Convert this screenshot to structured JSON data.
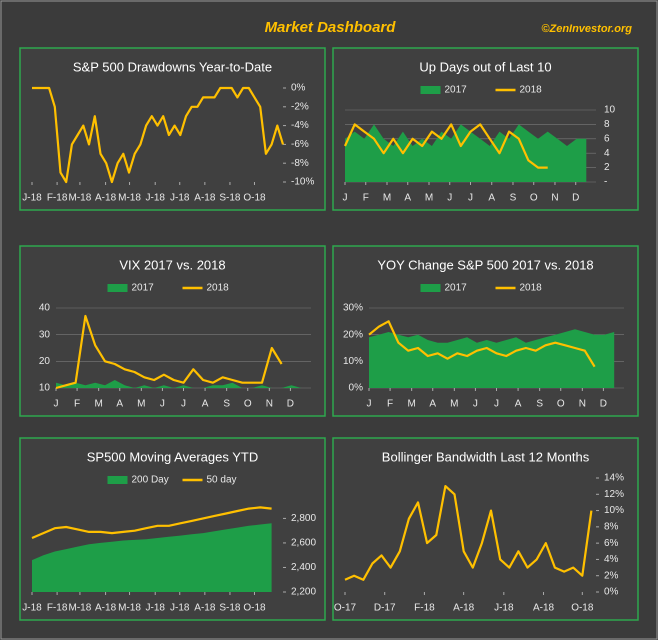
{
  "header": {
    "title": "Market Dashboard",
    "credit": "©ZenInvestor.org"
  },
  "chart_data": [
    {
      "type": "line",
      "title": "S&P 500 Drawdowns Year-to-Date",
      "y_axis_side": "right",
      "grid": false,
      "legend": false,
      "x": [
        0,
        1,
        2,
        3,
        4,
        5,
        6,
        7,
        8,
        9,
        10,
        11,
        12,
        13,
        14,
        15,
        16,
        17,
        18,
        19,
        20,
        21,
        22,
        23,
        24,
        25,
        26,
        27,
        28,
        29,
        30,
        31,
        32,
        33,
        34,
        35,
        36,
        37,
        38,
        39,
        40,
        41,
        42,
        43,
        44
      ],
      "xlim": [
        0,
        44
      ],
      "xticks": [
        {
          "value": 0,
          "label": "J-18"
        },
        {
          "value": 4.4,
          "label": "F-18"
        },
        {
          "value": 8.4,
          "label": "M-18"
        },
        {
          "value": 12.9,
          "label": "A-18"
        },
        {
          "value": 17.1,
          "label": "M-18"
        },
        {
          "value": 21.6,
          "label": "J-18"
        },
        {
          "value": 25.9,
          "label": "J-18"
        },
        {
          "value": 30.3,
          "label": "A-18"
        },
        {
          "value": 34.7,
          "label": "S-18"
        },
        {
          "value": 39,
          "label": "O-18"
        }
      ],
      "ylim": [
        -10,
        0
      ],
      "yticks": [
        {
          "value": 0,
          "label": "0%"
        },
        {
          "value": -2,
          "label": "-2%"
        },
        {
          "value": -4,
          "label": "-4%"
        },
        {
          "value": -6,
          "label": "-6%"
        },
        {
          "value": -8,
          "label": "-8%"
        },
        {
          "value": -10,
          "label": "-10%"
        }
      ],
      "series": [
        {
          "kind": "line",
          "color": "#ffc000",
          "values": [
            0,
            0,
            0,
            0,
            -2,
            -9,
            -10,
            -6,
            -5,
            -4,
            -6,
            -3,
            -7,
            -8,
            -10,
            -8,
            -7,
            -9,
            -7,
            -6,
            -4,
            -3,
            -4,
            -3,
            -5,
            -4,
            -5,
            -3,
            -2,
            -2,
            -1,
            -1,
            -1,
            0,
            0,
            0,
            -1,
            0,
            0,
            -1,
            -2,
            -7,
            -6,
            -4,
            -6
          ]
        }
      ]
    },
    {
      "type": "line",
      "title": "Up Days out of Last  10",
      "y_axis_side": "right",
      "grid": true,
      "legend": true,
      "x": [
        0,
        2,
        4,
        6,
        8,
        10,
        12,
        14,
        16,
        18,
        20,
        22,
        24,
        26,
        28,
        30,
        32,
        34,
        36,
        38,
        40,
        42,
        44,
        46,
        48,
        50
      ],
      "xlim": [
        0,
        52
      ],
      "xticks": [
        {
          "value": 0,
          "label": "J"
        },
        {
          "value": 4.3,
          "label": "F"
        },
        {
          "value": 8.7,
          "label": "M"
        },
        {
          "value": 13,
          "label": "A"
        },
        {
          "value": 17.4,
          "label": "M"
        },
        {
          "value": 21.7,
          "label": "J"
        },
        {
          "value": 26,
          "label": "J"
        },
        {
          "value": 30.4,
          "label": "A"
        },
        {
          "value": 34.8,
          "label": "S"
        },
        {
          "value": 39.1,
          "label": "O"
        },
        {
          "value": 43.5,
          "label": "N"
        },
        {
          "value": 47.8,
          "label": "D"
        }
      ],
      "ylim": [
        0,
        10
      ],
      "yticks": [
        {
          "value": 0,
          "label": "-"
        },
        2,
        4,
        6,
        8,
        10
      ],
      "series": [
        {
          "name": "2017",
          "kind": "area",
          "color": "#1e9e48",
          "values": [
            6,
            7,
            6,
            8,
            6,
            5,
            7,
            5,
            6,
            5,
            7,
            6,
            8,
            7,
            6,
            5,
            7,
            6,
            8,
            7,
            6,
            7,
            6,
            5,
            6,
            6
          ]
        },
        {
          "name": "2018",
          "kind": "line",
          "color": "#ffc000",
          "values": [
            5,
            8,
            7,
            6,
            4,
            6,
            4,
            6,
            5,
            7,
            6,
            8,
            5,
            7,
            8,
            6,
            4,
            7,
            6,
            3,
            2,
            2,
            null,
            null,
            null,
            null
          ]
        }
      ]
    },
    {
      "type": "line",
      "title": "VIX 2017 vs. 2018",
      "y_axis_side": "left",
      "grid": true,
      "legend": true,
      "x": [
        0,
        2,
        4,
        6,
        8,
        10,
        12,
        14,
        16,
        18,
        20,
        22,
        24,
        26,
        28,
        30,
        32,
        34,
        36,
        38,
        40,
        42,
        44,
        46,
        48,
        50
      ],
      "xlim": [
        0,
        52
      ],
      "xticks": [
        {
          "value": 0,
          "label": "J"
        },
        {
          "value": 4.3,
          "label": "F"
        },
        {
          "value": 8.7,
          "label": "M"
        },
        {
          "value": 13,
          "label": "A"
        },
        {
          "value": 17.4,
          "label": "M"
        },
        {
          "value": 21.7,
          "label": "J"
        },
        {
          "value": 26,
          "label": "J"
        },
        {
          "value": 30.4,
          "label": "A"
        },
        {
          "value": 34.8,
          "label": "S"
        },
        {
          "value": 39.1,
          "label": "O"
        },
        {
          "value": 43.5,
          "label": "N"
        },
        {
          "value": 47.8,
          "label": "D"
        }
      ],
      "ylim": [
        10,
        40
      ],
      "yticks": [
        10,
        20,
        30,
        40
      ],
      "series": [
        {
          "name": "2017",
          "kind": "area",
          "color": "#1e9e48",
          "values": [
            12,
            11,
            12,
            11,
            12,
            11,
            13,
            11,
            10,
            11,
            10,
            11,
            10,
            11,
            10,
            10,
            11,
            11,
            12,
            10,
            10,
            11,
            10,
            10,
            11,
            10
          ]
        },
        {
          "name": "2018",
          "kind": "line",
          "color": "#ffc000",
          "values": [
            10,
            11,
            12,
            37,
            26,
            20,
            19,
            17,
            16,
            14,
            13,
            15,
            13,
            12,
            17,
            13,
            12,
            14,
            13,
            12,
            12,
            12,
            25,
            19,
            null,
            null
          ]
        }
      ]
    },
    {
      "type": "line",
      "title": "YOY Change S&P 500 2017 vs. 2018",
      "y_axis_side": "left",
      "grid": true,
      "legend": true,
      "x": [
        0,
        2,
        4,
        6,
        8,
        10,
        12,
        14,
        16,
        18,
        20,
        22,
        24,
        26,
        28,
        30,
        32,
        34,
        36,
        38,
        40,
        42,
        44,
        46,
        48,
        50
      ],
      "xlim": [
        0,
        52
      ],
      "xticks": [
        {
          "value": 0,
          "label": "J"
        },
        {
          "value": 4.3,
          "label": "F"
        },
        {
          "value": 8.7,
          "label": "M"
        },
        {
          "value": 13,
          "label": "A"
        },
        {
          "value": 17.4,
          "label": "M"
        },
        {
          "value": 21.7,
          "label": "J"
        },
        {
          "value": 26,
          "label": "J"
        },
        {
          "value": 30.4,
          "label": "A"
        },
        {
          "value": 34.8,
          "label": "S"
        },
        {
          "value": 39.1,
          "label": "O"
        },
        {
          "value": 43.5,
          "label": "N"
        },
        {
          "value": 47.8,
          "label": "D"
        }
      ],
      "ylim": [
        0,
        30
      ],
      "yticks": [
        {
          "value": 0,
          "label": "0%"
        },
        {
          "value": 10,
          "label": "10%"
        },
        {
          "value": 20,
          "label": "20%"
        },
        {
          "value": 30,
          "label": "30%"
        }
      ],
      "series": [
        {
          "name": "2017",
          "kind": "area",
          "color": "#1e9e48",
          "values": [
            19,
            20,
            21,
            20,
            19,
            20,
            18,
            17,
            17,
            18,
            19,
            17,
            18,
            17,
            18,
            19,
            17,
            18,
            19,
            20,
            21,
            22,
            21,
            20,
            20,
            21
          ]
        },
        {
          "name": "2018",
          "kind": "line",
          "color": "#ffc000",
          "values": [
            20,
            23,
            25,
            17,
            14,
            15,
            12,
            13,
            11,
            13,
            12,
            14,
            15,
            13,
            12,
            14,
            15,
            14,
            16,
            17,
            16,
            15,
            14,
            8,
            null,
            null
          ]
        }
      ]
    },
    {
      "type": "line",
      "title": "SP500 Moving Averages YTD",
      "y_axis_side": "right",
      "grid": false,
      "legend": true,
      "x": [
        0,
        2,
        4,
        6,
        8,
        10,
        12,
        14,
        16,
        18,
        20,
        22,
        24,
        26,
        28,
        30,
        32,
        34,
        36,
        38,
        40,
        42
      ],
      "xlim": [
        0,
        44
      ],
      "xticks": [
        {
          "value": 0,
          "label": "J-18"
        },
        {
          "value": 4.4,
          "label": "F-18"
        },
        {
          "value": 8.4,
          "label": "M-18"
        },
        {
          "value": 12.9,
          "label": "A-18"
        },
        {
          "value": 17.1,
          "label": "M-18"
        },
        {
          "value": 21.6,
          "label": "J-18"
        },
        {
          "value": 25.9,
          "label": "J-18"
        },
        {
          "value": 30.3,
          "label": "A-18"
        },
        {
          "value": 34.7,
          "label": "S-18"
        },
        {
          "value": 39,
          "label": "O-18"
        }
      ],
      "ylim": [
        2200,
        2950
      ],
      "yticks": [
        {
          "value": 2200,
          "label": "2,200"
        },
        {
          "value": 2400,
          "label": "2,400"
        },
        {
          "value": 2600,
          "label": "2,600"
        },
        {
          "value": 2800,
          "label": "2,800"
        }
      ],
      "series": [
        {
          "name": "200 Day",
          "kind": "area",
          "color": "#1e9e48",
          "values": [
            2460,
            2500,
            2530,
            2550,
            2570,
            2590,
            2600,
            2610,
            2620,
            2625,
            2630,
            2640,
            2650,
            2660,
            2670,
            2680,
            2695,
            2710,
            2725,
            2740,
            2750,
            2760
          ]
        },
        {
          "name": "50 day",
          "kind": "line",
          "color": "#ffc000",
          "values": [
            2640,
            2680,
            2720,
            2730,
            2710,
            2690,
            2690,
            2680,
            2690,
            2700,
            2720,
            2740,
            2740,
            2760,
            2780,
            2800,
            2820,
            2840,
            2860,
            2880,
            2890,
            2880
          ]
        }
      ]
    },
    {
      "type": "line",
      "title": "Bollinger Bandwidth Last 12 Months",
      "y_axis_side": "right",
      "grid": false,
      "legend": false,
      "x": [
        0,
        2,
        4,
        6,
        8,
        10,
        12,
        14,
        16,
        18,
        20,
        22,
        24,
        26,
        28,
        30,
        32,
        34,
        36,
        38,
        40,
        42,
        44,
        46,
        48,
        50,
        52,
        54
      ],
      "xlim": [
        0,
        55
      ],
      "xticks": [
        {
          "value": 0,
          "label": "O-17"
        },
        {
          "value": 8.7,
          "label": "D-17"
        },
        {
          "value": 17.4,
          "label": "F-18"
        },
        {
          "value": 26,
          "label": "A-18"
        },
        {
          "value": 34.8,
          "label": "J-18"
        },
        {
          "value": 43.5,
          "label": "A-18"
        },
        {
          "value": 52,
          "label": "O-18"
        }
      ],
      "ylim": [
        0,
        14
      ],
      "yticks": [
        {
          "value": 0,
          "label": "0%"
        },
        {
          "value": 2,
          "label": "2%"
        },
        {
          "value": 4,
          "label": "4%"
        },
        {
          "value": 6,
          "label": "6%"
        },
        {
          "value": 8,
          "label": "8%"
        },
        {
          "value": 10,
          "label": "10%"
        },
        {
          "value": 12,
          "label": "12%"
        },
        {
          "value": 14,
          "label": "14%"
        }
      ],
      "series": [
        {
          "kind": "line",
          "color": "#ffc000",
          "values": [
            1.5,
            2,
            1.5,
            3.5,
            4.5,
            3,
            5,
            9,
            11,
            6,
            7,
            13,
            12,
            5,
            3,
            6,
            10,
            4,
            3,
            5,
            3,
            4,
            6,
            3,
            2.5,
            3,
            2,
            10
          ]
        }
      ]
    }
  ]
}
